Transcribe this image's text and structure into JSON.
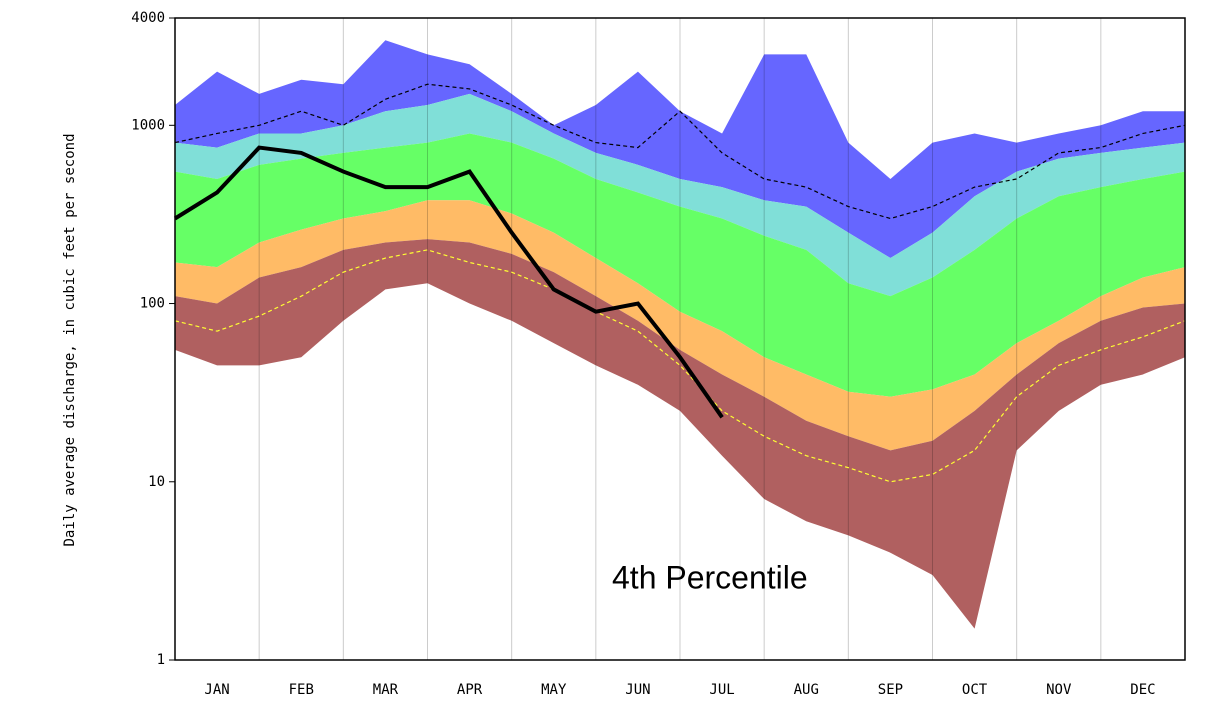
{
  "chart_data": {
    "type": "area",
    "log_y": true,
    "y_label": "Daily average discharge, in cubic feet per second",
    "annotation": "4th Percentile",
    "categories": [
      null,
      "JAN",
      null,
      "FEB",
      null,
      "MAR",
      null,
      "APR",
      null,
      "MAY",
      null,
      "JUN",
      null,
      "JUL",
      null,
      "AUG",
      null,
      "SEP",
      null,
      "OCT",
      null,
      "NOV",
      null,
      "DEC",
      null
    ],
    "ylim": [
      1,
      4000
    ],
    "yticks": [
      1,
      10,
      100,
      1000,
      4000
    ],
    "bands": [
      {
        "color": "#6666ff",
        "values": [
          1300,
          2000,
          1500,
          1800,
          1700,
          3000,
          2500,
          2200,
          1500,
          1000,
          1300,
          2000,
          1200,
          900,
          2500,
          2500,
          800,
          500,
          800,
          900,
          800,
          900,
          1000,
          1200,
          1200
        ]
      },
      {
        "color": "#80dfd8",
        "values": [
          800,
          750,
          900,
          900,
          1000,
          1200,
          1300,
          1500,
          1200,
          900,
          700,
          600,
          500,
          450,
          380,
          350,
          250,
          180,
          250,
          400,
          550,
          650,
          700,
          750,
          800
        ]
      },
      {
        "color": "#66ff66",
        "values": [
          550,
          500,
          600,
          650,
          700,
          750,
          800,
          900,
          800,
          650,
          500,
          420,
          350,
          300,
          240,
          200,
          130,
          110,
          140,
          200,
          300,
          400,
          450,
          500,
          550
        ]
      },
      {
        "color": "#ffbb66",
        "values": [
          170,
          160,
          220,
          260,
          300,
          330,
          380,
          380,
          320,
          250,
          180,
          130,
          90,
          70,
          50,
          40,
          32,
          30,
          33,
          40,
          60,
          80,
          110,
          140,
          160
        ]
      },
      {
        "color": "#b06060",
        "values": [
          110,
          100,
          140,
          160,
          200,
          220,
          230,
          220,
          190,
          150,
          110,
          80,
          55,
          40,
          30,
          22,
          18,
          15,
          17,
          25,
          40,
          60,
          80,
          95,
          100
        ]
      },
      {
        "color": "#b06060",
        "values": [
          55,
          45,
          45,
          50,
          80,
          120,
          130,
          100,
          80,
          60,
          45,
          35,
          25,
          14,
          8,
          6,
          5,
          4,
          3,
          1.5,
          15,
          25,
          35,
          40,
          50
        ]
      }
    ],
    "series": [
      {
        "color": "#000000",
        "dash": true,
        "width": 1.2,
        "values": [
          800,
          900,
          1000,
          1200,
          1000,
          1400,
          1700,
          1600,
          1300,
          1000,
          800,
          750,
          1200,
          700,
          500,
          450,
          350,
          300,
          350,
          450,
          500,
          700,
          750,
          900,
          1000
        ]
      },
      {
        "color": "#ffff33",
        "dash": true,
        "width": 1.2,
        "values": [
          80,
          70,
          85,
          110,
          150,
          180,
          200,
          170,
          150,
          120,
          90,
          70,
          45,
          25,
          18,
          14,
          12,
          10,
          11,
          15,
          30,
          45,
          55,
          65,
          80
        ]
      },
      {
        "color": "#000000",
        "dash": false,
        "width": 4,
        "values": [
          300,
          420,
          750,
          700,
          550,
          450,
          450,
          550,
          250,
          120,
          90,
          100,
          50,
          23,
          null,
          null,
          null,
          null,
          null,
          null,
          null,
          null,
          null,
          null,
          null
        ]
      }
    ]
  }
}
